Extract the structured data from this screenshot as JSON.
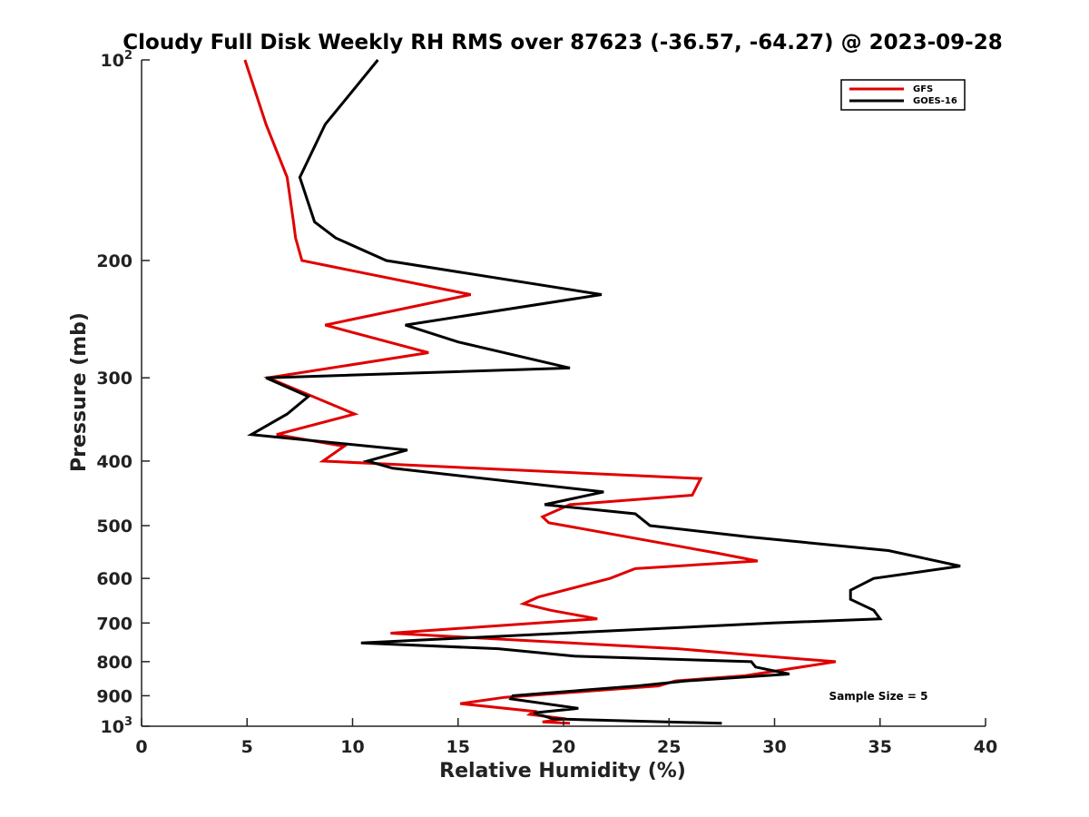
{
  "chart_data": {
    "type": "line",
    "title": "Cloudy Full Disk Weekly RH RMS over 87623 (-36.57, -64.27) @ 2023-09-28",
    "xlabel": "Relative Humidity (%)",
    "ylabel": "Pressure (mb)",
    "xlim": [
      0,
      40
    ],
    "ylim": [
      100,
      1000
    ],
    "yscale": "log",
    "y_reversed": true,
    "x_ticks": [
      "0",
      "5",
      "10",
      "15",
      "20",
      "25",
      "30",
      "35",
      "40"
    ],
    "x_tick_values": [
      0,
      5,
      10,
      15,
      20,
      25,
      30,
      35,
      40
    ],
    "y_ticks": [
      {
        "value": 100,
        "base": "10",
        "exp": "2"
      },
      {
        "value": 200,
        "label": "200"
      },
      {
        "value": 300,
        "label": "300"
      },
      {
        "value": 400,
        "label": "400"
      },
      {
        "value": 500,
        "label": "500"
      },
      {
        "value": 600,
        "label": "600"
      },
      {
        "value": 700,
        "label": "700"
      },
      {
        "value": 800,
        "label": "800"
      },
      {
        "value": 900,
        "label": "900"
      },
      {
        "value": 1000,
        "base": "10",
        "exp": "3"
      }
    ],
    "grid": false,
    "legend_position": "top-right",
    "annotation": "Sample Size = 5",
    "series": [
      {
        "name": "GFS",
        "color": "#e00000",
        "points": [
          [
            4.9,
            100
          ],
          [
            5.9,
            125
          ],
          [
            6.9,
            150
          ],
          [
            7.2,
            175
          ],
          [
            7.3,
            185
          ],
          [
            7.6,
            200
          ],
          [
            15.6,
            225
          ],
          [
            8.7,
            250
          ],
          [
            13.6,
            275
          ],
          [
            6.0,
            300
          ],
          [
            10.1,
            340
          ],
          [
            6.4,
            365
          ],
          [
            9.6,
            380
          ],
          [
            8.6,
            400
          ],
          [
            26.5,
            425
          ],
          [
            26.1,
            450
          ],
          [
            20.3,
            465
          ],
          [
            19.0,
            485
          ],
          [
            19.3,
            495
          ],
          [
            27.3,
            550
          ],
          [
            29.2,
            565
          ],
          [
            23.4,
            580
          ],
          [
            22.2,
            600
          ],
          [
            18.8,
            640
          ],
          [
            18.1,
            655
          ],
          [
            19.4,
            670
          ],
          [
            21.6,
            690
          ],
          [
            11.8,
            725
          ],
          [
            25.4,
            765
          ],
          [
            28.5,
            780
          ],
          [
            32.9,
            800
          ],
          [
            28.6,
            840
          ],
          [
            25.3,
            855
          ],
          [
            24.5,
            870
          ],
          [
            17.2,
            905
          ],
          [
            15.1,
            925
          ],
          [
            18.6,
            950
          ],
          [
            18.4,
            960
          ],
          [
            20.1,
            975
          ],
          [
            19.0,
            985
          ],
          [
            20.3,
            990
          ]
        ]
      },
      {
        "name": "GOES-16",
        "color": "#000000",
        "points": [
          [
            11.2,
            100
          ],
          [
            8.7,
            125
          ],
          [
            7.5,
            150
          ],
          [
            8.2,
            175
          ],
          [
            9.2,
            185
          ],
          [
            11.6,
            200
          ],
          [
            21.8,
            225
          ],
          [
            12.5,
            250
          ],
          [
            15.0,
            265
          ],
          [
            20.3,
            290
          ],
          [
            5.9,
            300
          ],
          [
            7.9,
            320
          ],
          [
            6.9,
            340
          ],
          [
            5.2,
            365
          ],
          [
            12.6,
            385
          ],
          [
            10.7,
            400
          ],
          [
            11.9,
            410
          ],
          [
            21.9,
            445
          ],
          [
            19.1,
            465
          ],
          [
            23.4,
            480
          ],
          [
            24.1,
            500
          ],
          [
            28.8,
            520
          ],
          [
            35.4,
            545
          ],
          [
            38.8,
            575
          ],
          [
            34.7,
            600
          ],
          [
            33.6,
            625
          ],
          [
            33.6,
            645
          ],
          [
            34.7,
            670
          ],
          [
            35.0,
            690
          ],
          [
            29.9,
            700
          ],
          [
            10.4,
            750
          ],
          [
            16.9,
            765
          ],
          [
            20.5,
            785
          ],
          [
            28.9,
            800
          ],
          [
            29.1,
            815
          ],
          [
            30.7,
            835
          ],
          [
            25.8,
            855
          ],
          [
            23.5,
            870
          ],
          [
            17.6,
            900
          ],
          [
            17.5,
            910
          ],
          [
            20.7,
            940
          ],
          [
            18.6,
            955
          ],
          [
            19.5,
            975
          ],
          [
            27.5,
            990
          ]
        ]
      }
    ]
  }
}
